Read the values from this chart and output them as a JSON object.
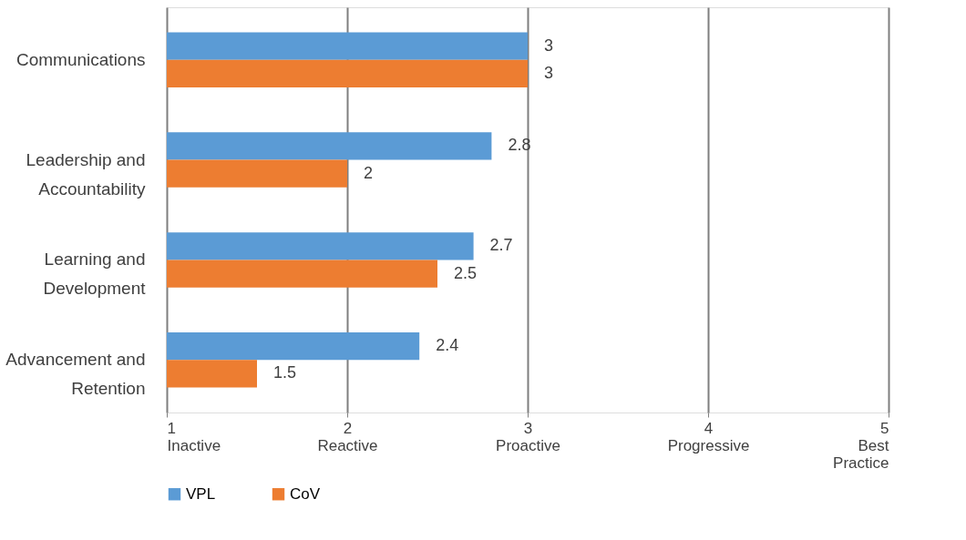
{
  "chart_data": {
    "type": "bar",
    "orientation": "horizontal",
    "categories": [
      "Communications",
      "Leadership and Accountability",
      "Learning and Development",
      "Advancement and Retention"
    ],
    "series": [
      {
        "name": "VPL",
        "color": "#5b9bd5",
        "values": [
          3,
          2.8,
          2.7,
          2.4
        ]
      },
      {
        "name": "CoV",
        "color": "#ed7d31",
        "values": [
          3,
          2,
          2.5,
          1.5
        ]
      }
    ],
    "xlim": [
      1,
      5
    ],
    "xticks": [
      {
        "value": 1,
        "label": "1\nInactive"
      },
      {
        "value": 2,
        "label": "2\nReactive"
      },
      {
        "value": 3,
        "label": "3\nProactive"
      },
      {
        "value": 4,
        "label": "4\nProgressive"
      },
      {
        "value": 5,
        "label": "5\nBest\nPractice"
      }
    ],
    "grid": "x",
    "legend": "bottom",
    "data_labels": true
  }
}
